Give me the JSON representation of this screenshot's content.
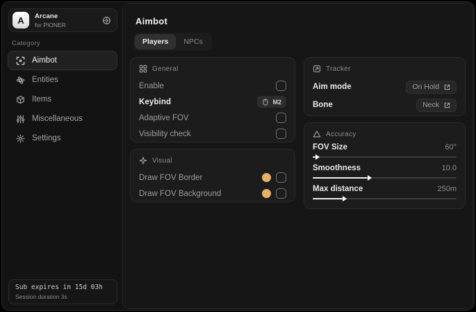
{
  "sidebar": {
    "brand": {
      "logo_letter": "A",
      "title": "Arcane",
      "subtitle": "for PIONER"
    },
    "category_label": "Category",
    "items": [
      {
        "label": "Aimbot",
        "icon": "crosshair-icon",
        "active": true
      },
      {
        "label": "Entities",
        "icon": "entities-icon",
        "active": false
      },
      {
        "label": "Items",
        "icon": "cube-icon",
        "active": false
      },
      {
        "label": "Miscellaneous",
        "icon": "mixer-icon",
        "active": false
      },
      {
        "label": "Settings",
        "icon": "gear-icon",
        "active": false
      }
    ],
    "footer": {
      "line1": "Sub expires in 15d 03h",
      "line2": "Session duration 3s"
    }
  },
  "main": {
    "title": "Aimbot",
    "tabs": [
      {
        "label": "Players",
        "active": true
      },
      {
        "label": "NPCs",
        "active": false
      }
    ],
    "panels": {
      "general": {
        "title": "General",
        "rows": [
          {
            "label": "Enable",
            "control": "checkbox",
            "checked": false
          },
          {
            "label": "Keybind",
            "control": "keybind",
            "key": "M2"
          },
          {
            "label": "Adaptive FOV",
            "control": "checkbox",
            "checked": false
          },
          {
            "label": "Visibility check",
            "control": "checkbox",
            "checked": false
          }
        ]
      },
      "visual": {
        "title": "Visual",
        "rows": [
          {
            "label": "Draw FOV Border",
            "control": "color+checkbox",
            "color": "#e7b264",
            "checked": false
          },
          {
            "label": "Draw FOV Background",
            "control": "color+checkbox",
            "color": "#e7b264",
            "checked": false
          }
        ]
      },
      "tracking": {
        "title": "Tracker",
        "rows": [
          {
            "label": "Aim mode",
            "value": "On Hold"
          },
          {
            "label": "Bone",
            "value": "Neck"
          }
        ]
      },
      "accuracy": {
        "title": "Accuracy",
        "sliders": [
          {
            "label": "FOV Size",
            "value": "60°",
            "percent": 2
          },
          {
            "label": "Smoothness",
            "value": "10.0",
            "percent": 38
          },
          {
            "label": "Max distance",
            "value": "250m",
            "percent": 21
          }
        ]
      }
    }
  },
  "colors": {
    "accent_swatch": "#e7b264",
    "card_bg": "#1c1c1c",
    "window_bg": "#131313"
  }
}
